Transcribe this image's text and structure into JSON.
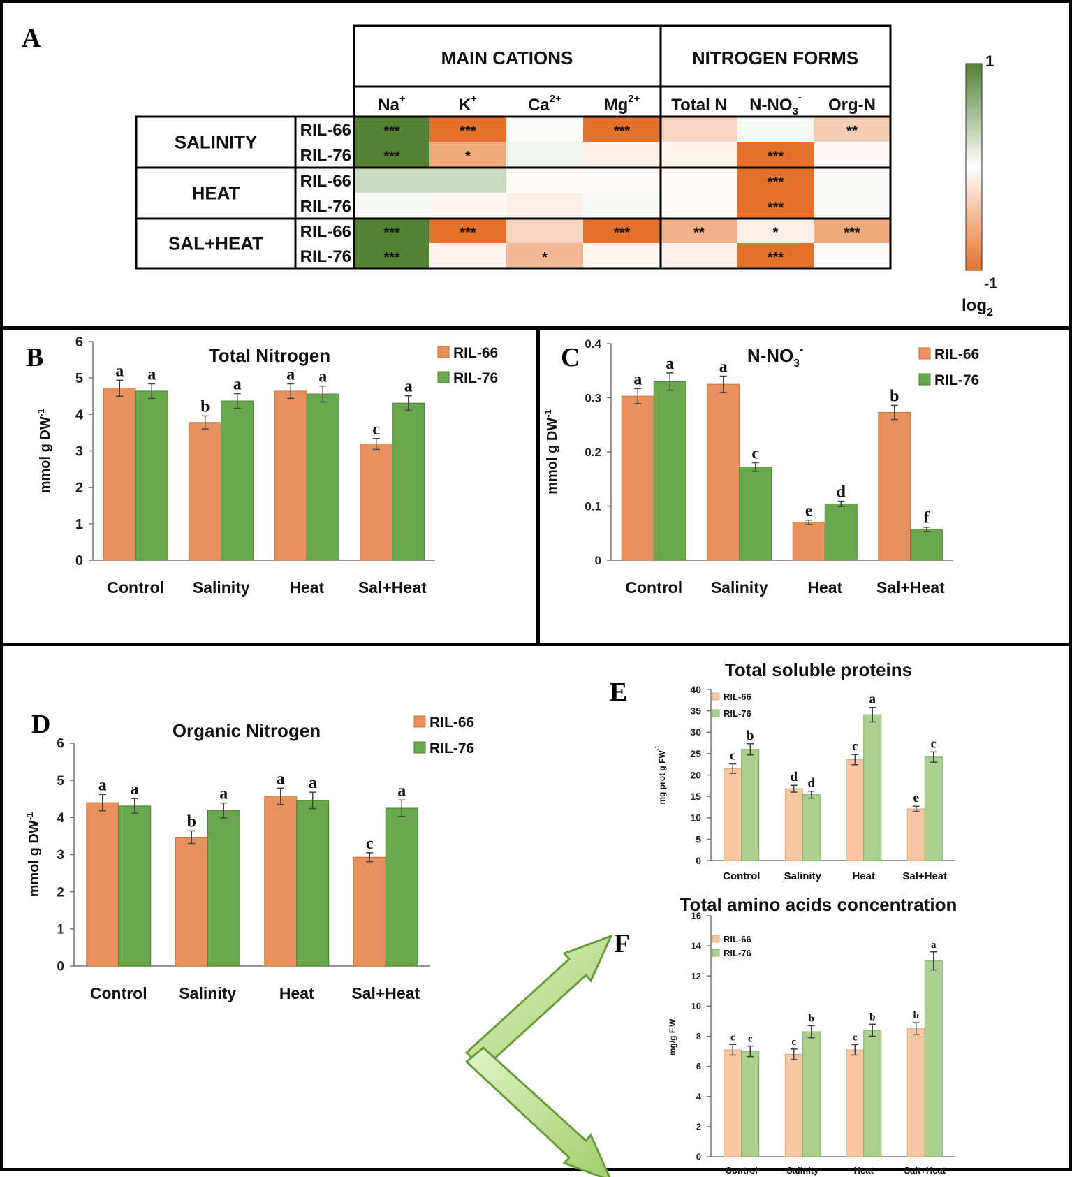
{
  "panels": {
    "a": "A",
    "b": "B",
    "c": "C",
    "d": "D",
    "e": "E",
    "f": "F"
  },
  "colors": {
    "orange": "#e8915f",
    "green": "#6aa84f",
    "light_orange": "#f7c7a4",
    "light_green": "#a9d08e",
    "heat_high": "#548235",
    "heat_low": "#e4722c"
  },
  "heatmap": {
    "group_headers": [
      "MAIN CATIONS",
      "NITROGEN FORMS"
    ],
    "columns": [
      {
        "base": "Na",
        "sup": "+",
        "sub": ""
      },
      {
        "base": "K",
        "sup": "+",
        "sub": ""
      },
      {
        "base": "Ca",
        "sup": "2+",
        "sub": ""
      },
      {
        "base": "Mg",
        "sup": "2+",
        "sub": ""
      },
      {
        "base": "Total N",
        "sup": "",
        "sub": ""
      },
      {
        "base": "N-NO",
        "sup": "-",
        "sub": "3"
      },
      {
        "base": "Org-N",
        "sup": "",
        "sub": ""
      }
    ],
    "conditions": [
      "SALINITY",
      "HEAT",
      "SAL+HEAT"
    ],
    "lines": [
      "RIL-66",
      "RIL-76"
    ],
    "values": [
      [
        1.0,
        -1.0,
        -0.02,
        -1.0,
        -0.3,
        0.05,
        -0.35
      ],
      [
        1.0,
        -0.6,
        0.08,
        -0.1,
        -0.08,
        -1.0,
        -0.04
      ],
      [
        0.3,
        0.3,
        -0.03,
        -0.02,
        -0.03,
        -1.0,
        0.03
      ],
      [
        0.05,
        -0.06,
        -0.1,
        0.05,
        -0.03,
        -1.0,
        0.04
      ],
      [
        1.0,
        -1.0,
        -0.3,
        -1.0,
        -0.55,
        -0.1,
        -0.6
      ],
      [
        1.0,
        -0.08,
        -0.5,
        -0.06,
        -0.1,
        -1.0,
        -0.03
      ]
    ],
    "stars": [
      [
        "***",
        "***",
        "",
        "***",
        "",
        "",
        "**"
      ],
      [
        "***",
        "*",
        "",
        "",
        "",
        "***",
        ""
      ],
      [
        "",
        "",
        "",
        "",
        "",
        "***",
        ""
      ],
      [
        "",
        "",
        "",
        "",
        "",
        "***",
        ""
      ],
      [
        "***",
        "***",
        "",
        "***",
        "**",
        "*",
        "***"
      ],
      [
        "***",
        "",
        "*",
        "",
        "",
        "***",
        ""
      ]
    ],
    "scale": {
      "max": "1",
      "min": "-1",
      "label": "log",
      "label_sub": "2"
    }
  },
  "chart_data": [
    {
      "id": "B",
      "type": "bar",
      "title": "Total Nitrogen",
      "categories": [
        "Control",
        "Salinity",
        "Heat",
        "Sal+Heat"
      ],
      "series": [
        {
          "name": "RIL-66",
          "values": [
            4.72,
            3.78,
            4.64,
            3.19
          ],
          "errors": [
            0.22,
            0.18,
            0.2,
            0.15
          ],
          "letters": [
            "a",
            "b",
            "a",
            "c"
          ]
        },
        {
          "name": "RIL-76",
          "values": [
            4.64,
            4.37,
            4.56,
            4.31
          ],
          "errors": [
            0.2,
            0.2,
            0.22,
            0.2
          ],
          "letters": [
            "a",
            "a",
            "a",
            "a"
          ]
        }
      ],
      "ylabel": "mmol g DW",
      "ylabel_sup": "-1",
      "ylim": [
        0,
        6
      ],
      "yticks": [
        "0",
        "1",
        "2",
        "3",
        "4",
        "5",
        "6"
      ]
    },
    {
      "id": "C",
      "type": "bar",
      "title": "N-NO",
      "title_sub": "3",
      "title_sup": "-",
      "categories": [
        "Control",
        "Salinity",
        "Heat",
        "Sal+Heat"
      ],
      "series": [
        {
          "name": "RIL-66",
          "values": [
            0.303,
            0.325,
            0.07,
            0.273
          ],
          "errors": [
            0.014,
            0.015,
            0.004,
            0.013
          ],
          "letters": [
            "a",
            "a",
            "e",
            "b"
          ]
        },
        {
          "name": "RIL-76",
          "values": [
            0.33,
            0.172,
            0.104,
            0.057
          ],
          "errors": [
            0.016,
            0.008,
            0.005,
            0.004
          ],
          "letters": [
            "a",
            "c",
            "d",
            "f"
          ]
        }
      ],
      "ylabel": "mmol g DW",
      "ylabel_sup": "-1",
      "ylim": [
        0,
        0.4
      ],
      "yticks": [
        "0",
        "0.1",
        "0.2",
        "0.3",
        "0.4"
      ]
    },
    {
      "id": "D",
      "type": "bar",
      "title": "Organic Nitrogen",
      "categories": [
        "Control",
        "Salinity",
        "Heat",
        "Sal+Heat"
      ],
      "series": [
        {
          "name": "RIL-66",
          "values": [
            4.4,
            3.47,
            4.57,
            2.93
          ],
          "errors": [
            0.22,
            0.17,
            0.22,
            0.12
          ],
          "letters": [
            "a",
            "b",
            "a",
            "c"
          ]
        },
        {
          "name": "RIL-76",
          "values": [
            4.31,
            4.19,
            4.46,
            4.25
          ],
          "errors": [
            0.2,
            0.2,
            0.22,
            0.22
          ],
          "letters": [
            "a",
            "a",
            "a",
            "a"
          ]
        }
      ],
      "ylabel": "mmol g DW",
      "ylabel_sup": "-1",
      "ylim": [
        0,
        6
      ],
      "yticks": [
        "0",
        "1",
        "2",
        "3",
        "4",
        "5",
        "6"
      ]
    },
    {
      "id": "E",
      "type": "bar",
      "title": "Total soluble proteins",
      "categories": [
        "Control",
        "Salinity",
        "Heat",
        "Sal+Heat"
      ],
      "series": [
        {
          "name": "RIL-66",
          "values": [
            21.5,
            16.8,
            23.6,
            12.1
          ],
          "errors": [
            1.1,
            0.8,
            1.2,
            0.6
          ],
          "letters": [
            "c",
            "d",
            "c",
            "e"
          ]
        },
        {
          "name": "RIL-76",
          "values": [
            26.0,
            15.4,
            34.1,
            24.2
          ],
          "errors": [
            1.3,
            0.8,
            1.7,
            1.2
          ],
          "letters": [
            "b",
            "d",
            "a",
            "c"
          ]
        }
      ],
      "ylabel": "mg prot g FW",
      "ylabel_sup": "-1",
      "ylim": [
        0,
        40
      ],
      "yticks": [
        "0",
        "5",
        "10",
        "15",
        "20",
        "25",
        "30",
        "35",
        "40"
      ]
    },
    {
      "id": "F",
      "type": "bar",
      "title": "Total amino acids concentration",
      "categories": [
        "Control",
        "Salinity",
        "Heat",
        "Salt+Heat"
      ],
      "series": [
        {
          "name": "RIL-66",
          "values": [
            7.1,
            6.8,
            7.1,
            8.5
          ],
          "errors": [
            0.35,
            0.35,
            0.35,
            0.4
          ],
          "letters": [
            "c",
            "c",
            "c",
            "b"
          ]
        },
        {
          "name": "RIL-76",
          "values": [
            7.0,
            8.3,
            8.4,
            13.0
          ],
          "errors": [
            0.35,
            0.4,
            0.4,
            0.6
          ],
          "letters": [
            "c",
            "b",
            "b",
            "a"
          ]
        }
      ],
      "ylabel": "mg/g F.W.",
      "ylabel_sup": "",
      "ylim": [
        0,
        16
      ],
      "yticks": [
        "0",
        "2",
        "4",
        "6",
        "8",
        "10",
        "12",
        "14",
        "16"
      ]
    }
  ]
}
